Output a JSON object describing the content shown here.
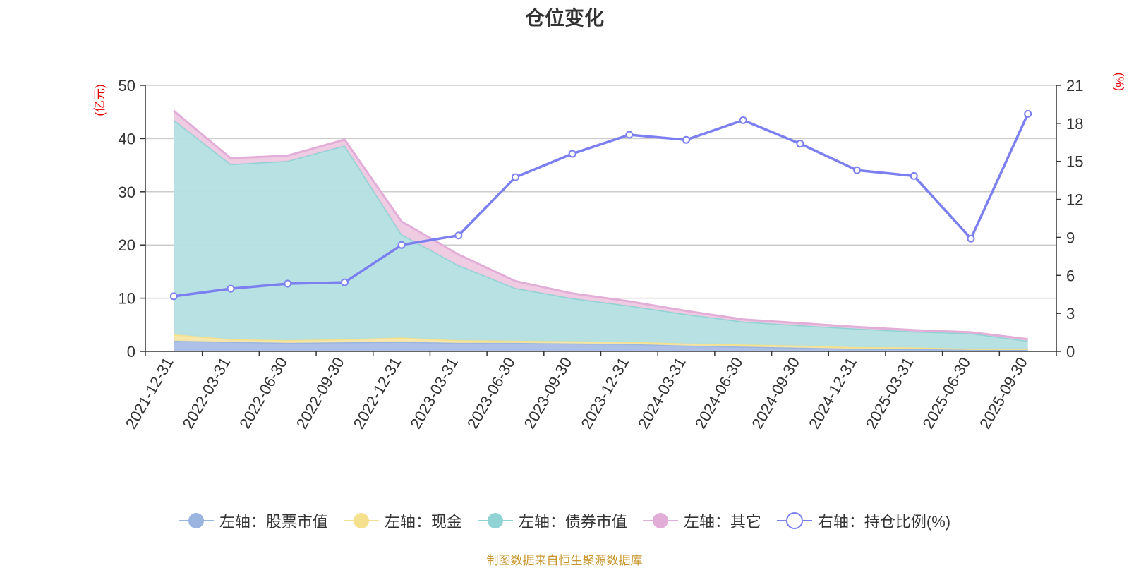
{
  "chart_data": {
    "type": "area",
    "title": "仓位变化",
    "categories": [
      "2021-12-31",
      "2022-03-31",
      "2022-06-30",
      "2022-09-30",
      "2022-12-31",
      "2023-03-31",
      "2023-06-30",
      "2023-09-30",
      "2023-12-31",
      "2024-03-31",
      "2024-06-30",
      "2024-09-30",
      "2024-12-31",
      "2025-03-31",
      "2025-06-30",
      "2025-09-30"
    ],
    "left_axis": {
      "unit": "(亿元)",
      "ylim": [
        0,
        50
      ],
      "ticks": [
        0,
        10,
        20,
        30,
        40,
        50
      ]
    },
    "right_axis": {
      "unit": "(%)",
      "ylim": [
        0,
        21
      ],
      "ticks": [
        0,
        3,
        6,
        9,
        12,
        15,
        18,
        21
      ]
    },
    "stacked": true,
    "series": [
      {
        "name": "左轴：股票市值",
        "axis": "left",
        "type": "area",
        "color": "#9ab6e0",
        "fill": "#a9bde6",
        "values": [
          2.0,
          1.8,
          1.6,
          1.7,
          1.8,
          1.6,
          1.6,
          1.5,
          1.4,
          1.1,
          0.9,
          0.7,
          0.5,
          0.45,
          0.3,
          0.3
        ]
      },
      {
        "name": "左轴：现金",
        "axis": "left",
        "type": "area",
        "color": "#f5e08e",
        "fill": "#f7e6a6",
        "values": [
          1.2,
          0.5,
          0.5,
          0.6,
          0.8,
          0.5,
          0.4,
          0.4,
          0.4,
          0.4,
          0.4,
          0.4,
          0.3,
          0.3,
          0.2,
          0.2
        ]
      },
      {
        "name": "左轴：债券市值",
        "axis": "left",
        "type": "area",
        "color": "#8fd3d4",
        "fill": "#b3dfe0",
        "values": [
          40.3,
          32.9,
          33.7,
          36.4,
          19.4,
          14.1,
          9.9,
          8.1,
          6.8,
          5.5,
          4.3,
          3.8,
          3.5,
          3.0,
          2.9,
          1.5
        ]
      },
      {
        "name": "左轴：其它",
        "axis": "left",
        "type": "area",
        "color": "#e2aed8",
        "fill": "#efc9e2",
        "values": [
          1.7,
          1.1,
          1.0,
          1.1,
          2.4,
          2.0,
          1.3,
          0.9,
          0.8,
          0.6,
          0.4,
          0.4,
          0.3,
          0.25,
          0.2,
          0.3
        ]
      },
      {
        "name": "右轴：持仓比例(%)",
        "axis": "right",
        "type": "line",
        "color": "#7b7ff0",
        "values": [
          4.35,
          4.95,
          5.35,
          5.45,
          8.4,
          9.15,
          13.75,
          15.6,
          17.1,
          16.7,
          18.25,
          16.4,
          14.3,
          13.85,
          8.9,
          18.75
        ]
      }
    ],
    "grid": true,
    "legend_position": "bottom"
  },
  "source_note": "制图数据来自恒生聚源数据库",
  "colors": {
    "axis": "#333333",
    "grid": "#cccccc",
    "unit_label": "#e60000",
    "source_note": "#c9962d"
  }
}
